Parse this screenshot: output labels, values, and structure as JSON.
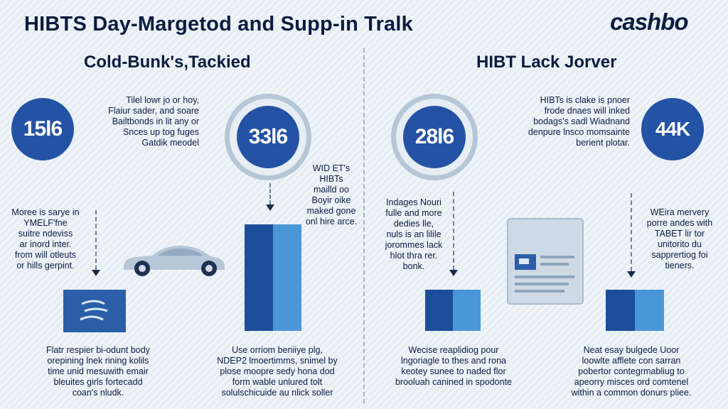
{
  "header": {
    "title": "HIBTS Day-Margetod and Supp-in Tralk",
    "logo": "cashbo"
  },
  "left": {
    "subtitle": "Cold-Bunk's,Tackied",
    "circle1": "15l6",
    "circle2": "33l6",
    "text_top": [
      "Tilel lowr jo or hoy,",
      "Flaiur sader, and soare",
      "Bailtbonds in lit any or",
      "Snces up tog fuges",
      "Gatdik meodel"
    ],
    "text_mid": [
      "WID ET's",
      "HIBTs",
      "mailld oo",
      "Boyir oike",
      "maked gone",
      "onl hire arce."
    ],
    "text_left": [
      "Moree is sarye in",
      "YMELF'fne",
      "suitre ndeviss",
      "ar inord inter.",
      "from will otleuts",
      "or hills gerpint."
    ],
    "text_bottom1": [
      "Flatr respier bi-odunt body",
      "orepining lnek rining kolils",
      "time unid mesuwith emair",
      "bleuites girls fortecadd",
      "coan's nludk."
    ],
    "text_bottom2": [
      "Use orriom beniiye plg,",
      "NDEP2 lmoertimms, snimel by",
      "plose moopre sedy hona dod",
      "form wable unlured tolt",
      "solulschicuide au nlick soller"
    ]
  },
  "right": {
    "subtitle": "HIBT Lack Jorver",
    "circle1": "28l6",
    "circle2": "44K",
    "text_top": [
      "HIBTs is clake is pnoer",
      "frode dnaes will inked",
      "bodags's sadl Wiadnand",
      "denpure lnsco momsainte",
      "berient plotar."
    ],
    "text_mid": [
      "Indages Nouri",
      "fulle and more",
      "dedies lle,",
      "nuls is an lilile",
      "jorommes lack",
      "hlot thra rer.",
      "bonk."
    ],
    "text_right": [
      "WEira mervery",
      "porre andes with",
      "TABET lir tor",
      "unitorito du",
      "sapprertiog foi",
      "tieners."
    ],
    "text_bottom1": [
      "Wecise reaplidiog pour",
      "lngoriagle to thes and rona",
      "keotey sunee to naded flor",
      "brooluah canined in spodonte"
    ],
    "text_bottom2": [
      "Neat esay bulgede Uoor",
      "loowlte afflete con sarran",
      "pobertor contegrmabliug to",
      "apeorry misces ord comtenel",
      "within a common donurs pliee."
    ]
  },
  "colors": {
    "primary": "#2452a4",
    "dark_blue": "#1d4e9c",
    "light_blue": "#4a97d8",
    "text": "#0d1b3e"
  },
  "icons": [
    "car-icon",
    "document-icon",
    "wind-icon",
    "arrow-down-icon"
  ]
}
